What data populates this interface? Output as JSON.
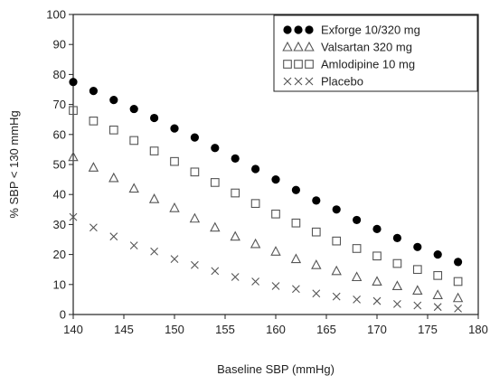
{
  "chart_data": {
    "type": "scatter",
    "xlabel": "Baseline SBP (mmHg)",
    "ylabel": "% SBP < 130 mmHg",
    "xlim": [
      140,
      180
    ],
    "ylim": [
      0,
      100
    ],
    "xticks": [
      140,
      145,
      150,
      155,
      160,
      165,
      170,
      175,
      180
    ],
    "yticks": [
      0,
      10,
      20,
      30,
      40,
      50,
      60,
      70,
      80,
      90,
      100
    ],
    "grid": false,
    "legend_position": "top-right",
    "x": [
      140,
      142,
      144,
      146,
      148,
      150,
      152,
      154,
      156,
      158,
      160,
      162,
      164,
      166,
      168,
      170,
      172,
      174,
      176,
      178
    ],
    "series": [
      {
        "name": "Exforge 10/320 mg",
        "marker": "filled-circle",
        "color": "#000000",
        "values": [
          77.5,
          74.5,
          71.5,
          68.5,
          65.5,
          62,
          59,
          55.5,
          52,
          48.5,
          45,
          41.5,
          38,
          35,
          31.5,
          28.5,
          25.5,
          22.5,
          20,
          17.5
        ]
      },
      {
        "name": "Valsartan 320 mg",
        "marker": "triangle",
        "color": "#555555",
        "values": [
          52.5,
          49,
          45.5,
          42,
          38.5,
          35.5,
          32,
          29,
          26,
          23.5,
          21,
          18.5,
          16.5,
          14.5,
          12.5,
          11,
          9.5,
          8,
          6.5,
          5.5
        ]
      },
      {
        "name": "Amlodipine 10 mg",
        "marker": "square",
        "color": "#555555",
        "values": [
          68,
          64.5,
          61.5,
          58,
          54.5,
          51,
          47.5,
          44,
          40.5,
          37,
          33.5,
          30.5,
          27.5,
          24.5,
          22,
          19.5,
          17,
          15,
          13,
          11
        ]
      },
      {
        "name": "Placebo",
        "marker": "cross",
        "color": "#555555",
        "values": [
          32.5,
          29,
          26,
          23,
          21,
          18.5,
          16.5,
          14.5,
          12.5,
          11,
          9.5,
          8.5,
          7,
          6,
          5,
          4.5,
          3.5,
          3,
          2.5,
          2
        ]
      }
    ]
  }
}
